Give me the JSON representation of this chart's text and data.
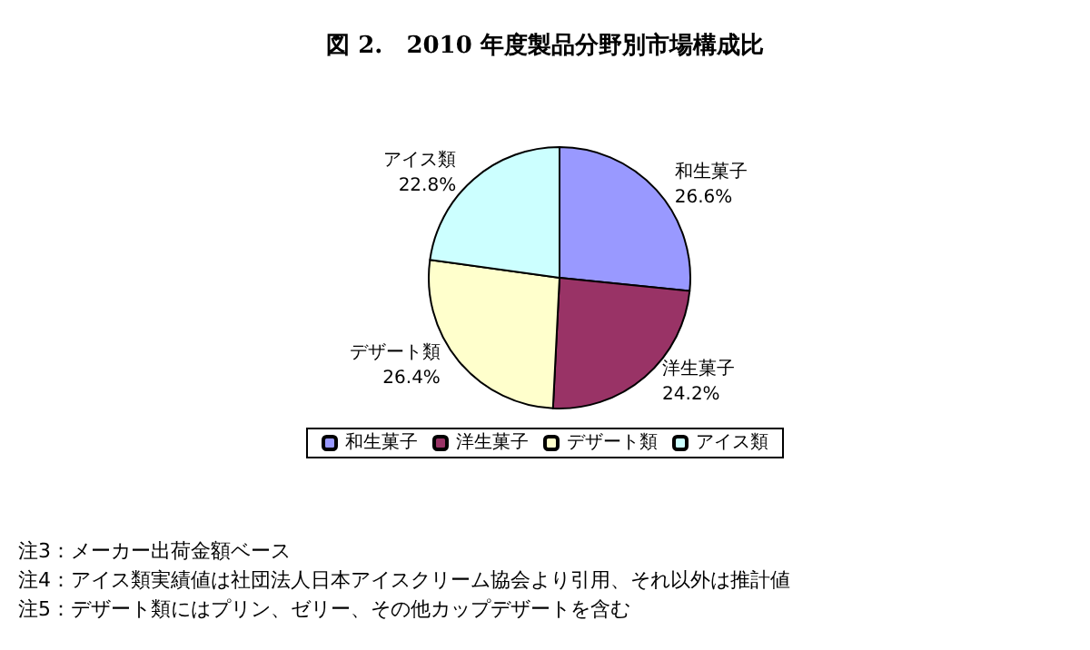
{
  "chart_data": {
    "type": "pie",
    "title": "図 2.　2010 年度製品分野別市場構成比",
    "categories": [
      "和生菓子",
      "洋生菓子",
      "デザート類",
      "アイス類"
    ],
    "values": [
      26.6,
      24.2,
      26.4,
      22.8
    ],
    "colors": [
      "#9999ff",
      "#993366",
      "#ffffcc",
      "#ccffff"
    ],
    "value_labels": [
      "26.6%",
      "24.2%",
      "26.4%",
      "22.8%"
    ],
    "legend": "bottom",
    "annotations": [
      "注3：メーカー出荷金額ベース",
      "注4：アイス類実績値は社団法人日本アイスクリーム協会より引用、それ以外は推計値",
      "注5：デザート類にはプリン、ゼリー、その他カップデザートを含む"
    ]
  }
}
